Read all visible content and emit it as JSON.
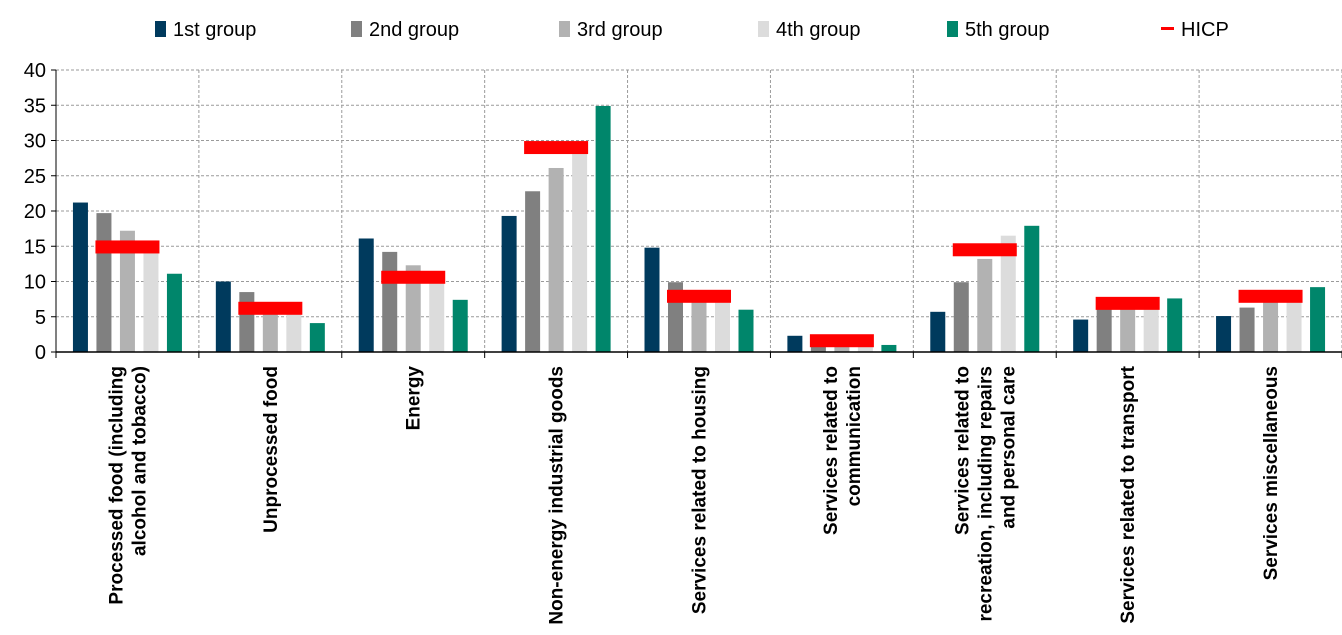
{
  "chart_data": {
    "type": "bar",
    "categories": [
      [
        "Processed food (including",
        "alcohol and tobacco)"
      ],
      [
        "Unprocessed food"
      ],
      [
        "Energy"
      ],
      [
        "Non-energy industrial goods"
      ],
      [
        "Services related to housing"
      ],
      [
        "Services related to",
        "communication"
      ],
      [
        "Services related to",
        "recreation, including repairs",
        "and personal care"
      ],
      [
        "Services related to transport"
      ],
      [
        "Services miscellaneous"
      ]
    ],
    "series": [
      {
        "name": "1st group",
        "color": "#003a5d",
        "values": [
          21.2,
          10.0,
          16.1,
          19.3,
          14.8,
          2.3,
          5.7,
          4.6,
          5.1
        ]
      },
      {
        "name": "2nd group",
        "color": "#808080",
        "values": [
          19.7,
          8.5,
          14.2,
          22.8,
          9.9,
          1.6,
          9.9,
          6.2,
          6.3
        ]
      },
      {
        "name": "3rd group",
        "color": "#b2b2b2",
        "values": [
          17.2,
          6.7,
          12.3,
          26.1,
          8.2,
          1.4,
          13.2,
          6.6,
          7.4
        ]
      },
      {
        "name": "4th group",
        "color": "#dcdcdc",
        "values": [
          14.7,
          5.6,
          10.4,
          29.1,
          7.0,
          1.2,
          16.5,
          6.6,
          7.2
        ]
      },
      {
        "name": "5th group",
        "color": "#00866b",
        "values": [
          11.1,
          4.1,
          7.4,
          34.9,
          6.0,
          1.0,
          17.9,
          7.6,
          9.2
        ]
      }
    ],
    "hicp": {
      "name": "HICP",
      "color": "#ff0000",
      "values": [
        14.9,
        6.2,
        10.6,
        29.0,
        7.9,
        1.6,
        14.5,
        6.9,
        7.9
      ]
    },
    "yticks": [
      "0",
      "5",
      "10",
      "15",
      "20",
      "25",
      "30",
      "35",
      "40"
    ],
    "ylim": [
      0,
      40
    ],
    "xlabel": "",
    "ylabel": "",
    "grid": true,
    "legend_position": "top"
  }
}
